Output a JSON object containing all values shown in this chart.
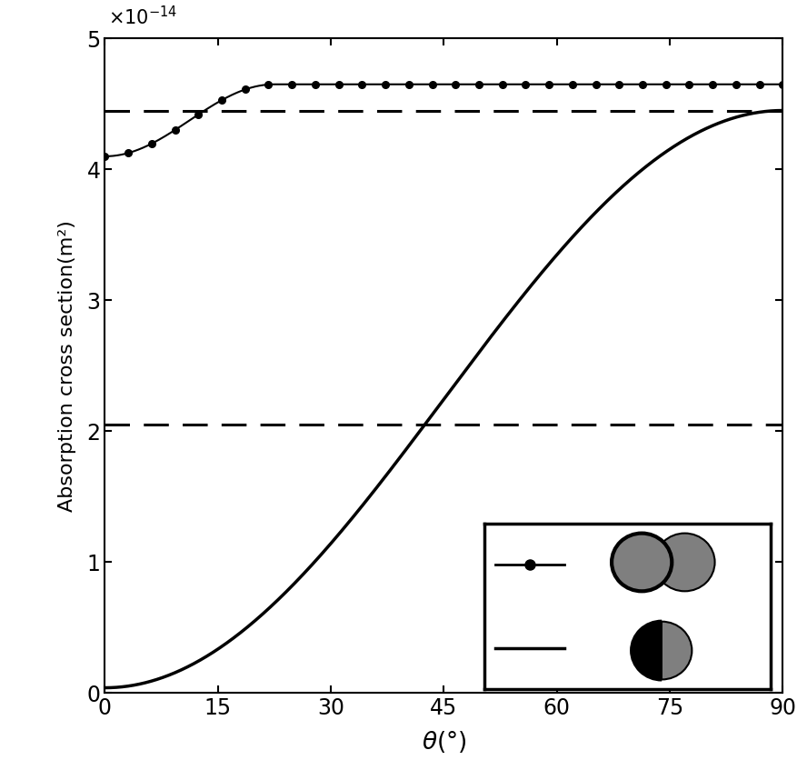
{
  "xlabel": "$\\theta$(°)",
  "ylabel": "Absorption cross section(m²)",
  "xlim": [
    0,
    90
  ],
  "ylim": [
    0,
    5e-14
  ],
  "xticks": [
    0,
    15,
    30,
    45,
    60,
    75,
    90
  ],
  "yticks": [
    0,
    1e-14,
    2e-14,
    3e-14,
    4e-14,
    5e-14
  ],
  "ytick_labels": [
    "0",
    "1",
    "2",
    "3",
    "4",
    "5"
  ],
  "dashed_line_upper": 4.45e-14,
  "dashed_line_lower": 2.05e-14,
  "dotted_line_start": 4.1e-14,
  "dotted_line_end": 4.65e-14,
  "solid_line_start": 4e-16,
  "solid_line_end": 4.45e-14,
  "background_color": "#ffffff",
  "line_color": "#000000",
  "circle_gray_color": "#7f7f7f",
  "circle_dark_color": "#000000",
  "marker_count": 30,
  "fig_width": 8.88,
  "fig_height": 8.47,
  "dpi": 100
}
